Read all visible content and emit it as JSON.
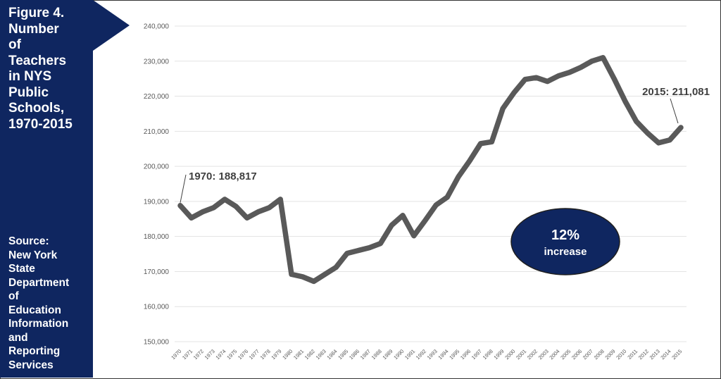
{
  "figure": {
    "title": "Figure 4.\nNumber\nof\nTeachers\nin NYS\nPublic\nSchools,\n1970-2015",
    "source": "Source:\nNew York\nState\nDepartment\nof\nEducation\nInformation\nand\nReporting\nServices"
  },
  "colors": {
    "navy": "#0f2660",
    "line": "#595959",
    "grid": "#e3e3e3"
  },
  "chart_data": {
    "type": "line",
    "title": "Number of Teachers in NYS Public Schools, 1970-2015",
    "xlabel": "",
    "ylabel": "",
    "ylim": [
      150000,
      240000
    ],
    "yticks": [
      150000,
      160000,
      170000,
      180000,
      190000,
      200000,
      210000,
      220000,
      230000,
      240000
    ],
    "ytick_labels": [
      "150,000",
      "160,000",
      "170,000",
      "180,000",
      "190,000",
      "200,000",
      "210,000",
      "220,000",
      "230,000",
      "240,000"
    ],
    "grid": true,
    "x": [
      "1970",
      "1971",
      "1972",
      "1973",
      "1974",
      "1975",
      "1976",
      "1977",
      "1978",
      "1979",
      "1980",
      "1981",
      "1982",
      "1983",
      "1984",
      "1985",
      "1986",
      "1987",
      "1988",
      "1989",
      "1990",
      "1991",
      "1992",
      "1993",
      "1994",
      "1995",
      "1996",
      "1997",
      "1998",
      "1999",
      "2000",
      "2001",
      "2002",
      "2003",
      "2004",
      "2005",
      "2006",
      "2007",
      "2008",
      "2009",
      "2010",
      "2011",
      "2012",
      "2013",
      "2014",
      "2015"
    ],
    "series": [
      {
        "values": [
          188817,
          185300,
          187000,
          188200,
          190600,
          188600,
          185300,
          187000,
          188200,
          190600,
          169200,
          168500,
          167200,
          169200,
          171200,
          175200,
          176000,
          176800,
          178000,
          183200,
          186000,
          180200,
          184500,
          189000,
          191200,
          197000,
          201500,
          206500,
          207000,
          216500,
          221000,
          224800,
          225300,
          224200,
          225800,
          226800,
          228200,
          230000,
          231000,
          225000,
          218500,
          212800,
          209500,
          206700,
          207500,
          211081
        ]
      }
    ],
    "annotations": [
      {
        "label": "1970: 188,817",
        "x": "1970",
        "y": 188817
      },
      {
        "label": "2015: 211,081",
        "x": "2015",
        "y": 211081
      }
    ],
    "badge": {
      "percent": "12%",
      "label": "increase"
    }
  }
}
